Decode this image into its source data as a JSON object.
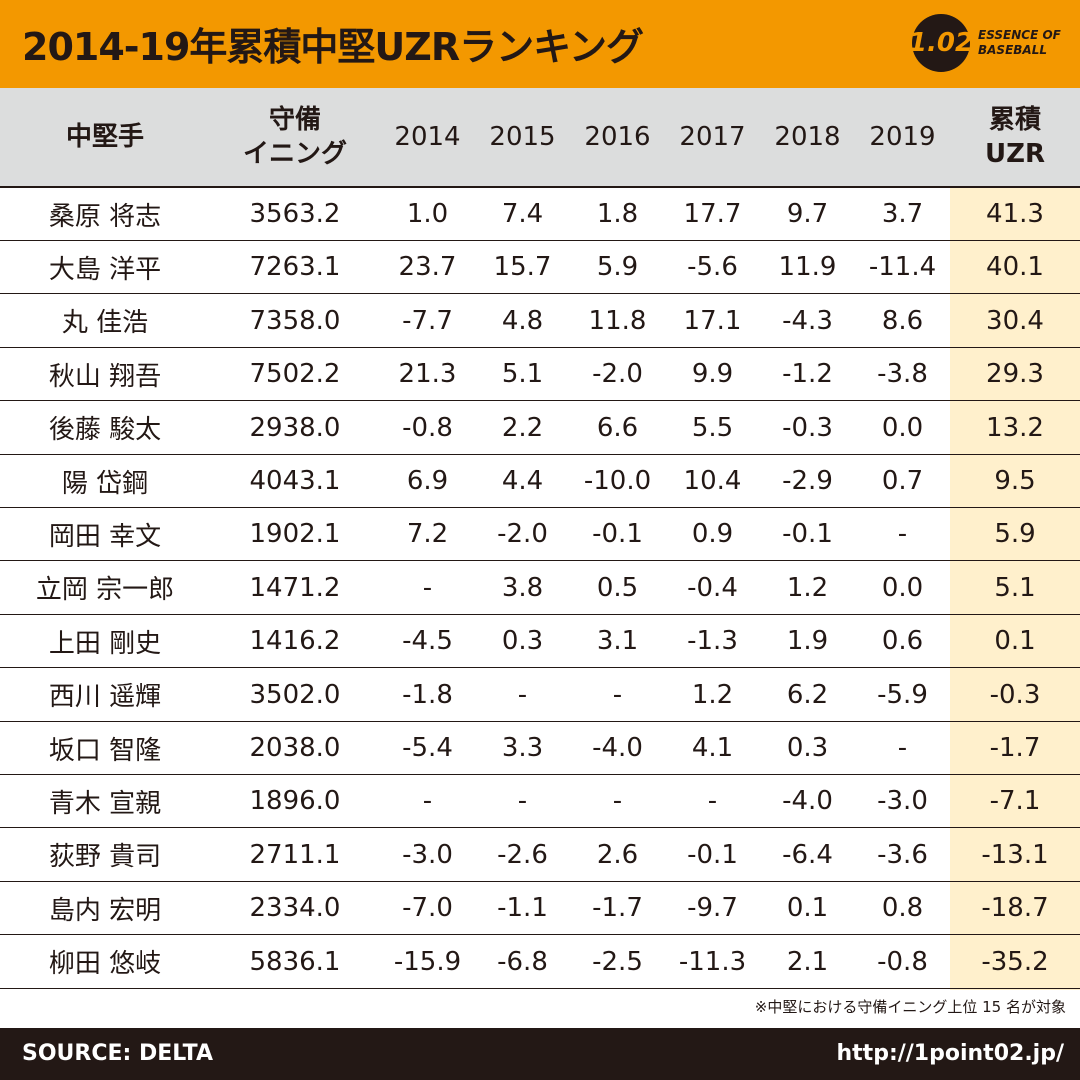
{
  "title": "2014-19年累積中堅UZRランキング",
  "logo": {
    "mark": "1.02",
    "line1": "ESSENCE OF",
    "line2": "BASEBALL"
  },
  "headers": {
    "player": "中堅手",
    "innings": "守備\nイニング",
    "years": [
      "2014",
      "2015",
      "2016",
      "2017",
      "2018",
      "2019"
    ],
    "total": "累積\nUZR"
  },
  "rows": [
    {
      "name": "桑原 将志",
      "innings": "3563.2",
      "y": [
        "1.0",
        "7.4",
        "1.8",
        "17.7",
        "9.7",
        "3.7"
      ],
      "total": "41.3"
    },
    {
      "name": "大島 洋平",
      "innings": "7263.1",
      "y": [
        "23.7",
        "15.7",
        "5.9",
        "-5.6",
        "11.9",
        "-11.4"
      ],
      "total": "40.1"
    },
    {
      "name": "丸 佳浩",
      "innings": "7358.0",
      "y": [
        "-7.7",
        "4.8",
        "11.8",
        "17.1",
        "-4.3",
        "8.6"
      ],
      "total": "30.4"
    },
    {
      "name": "秋山 翔吾",
      "innings": "7502.2",
      "y": [
        "21.3",
        "5.1",
        "-2.0",
        "9.9",
        "-1.2",
        "-3.8"
      ],
      "total": "29.3"
    },
    {
      "name": "後藤 駿太",
      "innings": "2938.0",
      "y": [
        "-0.8",
        "2.2",
        "6.6",
        "5.5",
        "-0.3",
        "0.0"
      ],
      "total": "13.2"
    },
    {
      "name": "陽 岱鋼",
      "innings": "4043.1",
      "y": [
        "6.9",
        "4.4",
        "-10.0",
        "10.4",
        "-2.9",
        "0.7"
      ],
      "total": "9.5"
    },
    {
      "name": "岡田 幸文",
      "innings": "1902.1",
      "y": [
        "7.2",
        "-2.0",
        "-0.1",
        "0.9",
        "-0.1",
        "-"
      ],
      "total": "5.9"
    },
    {
      "name": "立岡 宗一郎",
      "innings": "1471.2",
      "y": [
        "-",
        "3.8",
        "0.5",
        "-0.4",
        "1.2",
        "0.0"
      ],
      "total": "5.1"
    },
    {
      "name": "上田 剛史",
      "innings": "1416.2",
      "y": [
        "-4.5",
        "0.3",
        "3.1",
        "-1.3",
        "1.9",
        "0.6"
      ],
      "total": "0.1"
    },
    {
      "name": "西川 遥輝",
      "innings": "3502.0",
      "y": [
        "-1.8",
        "-",
        "-",
        "1.2",
        "6.2",
        "-5.9"
      ],
      "total": "-0.3"
    },
    {
      "name": "坂口 智隆",
      "innings": "2038.0",
      "y": [
        "-5.4",
        "3.3",
        "-4.0",
        "4.1",
        "0.3",
        "-"
      ],
      "total": "-1.7"
    },
    {
      "name": "青木 宣親",
      "innings": "1896.0",
      "y": [
        "-",
        "-",
        "-",
        "-",
        "-4.0",
        "-3.0"
      ],
      "total": "-7.1"
    },
    {
      "name": "荻野 貴司",
      "innings": "2711.1",
      "y": [
        "-3.0",
        "-2.6",
        "2.6",
        "-0.1",
        "-6.4",
        "-3.6"
      ],
      "total": "-13.1"
    },
    {
      "name": "島内 宏明",
      "innings": "2334.0",
      "y": [
        "-7.0",
        "-1.1",
        "-1.7",
        "-9.7",
        "0.1",
        "0.8"
      ],
      "total": "-18.7"
    },
    {
      "name": "柳田 悠岐",
      "innings": "5836.1",
      "y": [
        "-15.9",
        "-6.8",
        "-2.5",
        "-11.3",
        "2.1",
        "-0.8"
      ],
      "total": "-35.2"
    }
  ],
  "note": "※中堅における守備イニング上位 15 名が対象",
  "footer": {
    "source": "SOURCE: DELTA",
    "url": "http://1point02.jp/"
  },
  "colors": {
    "accent": "#f39800",
    "total_col": "#fff0cc",
    "header_bg": "#dcdddd",
    "dark": "#231815"
  }
}
